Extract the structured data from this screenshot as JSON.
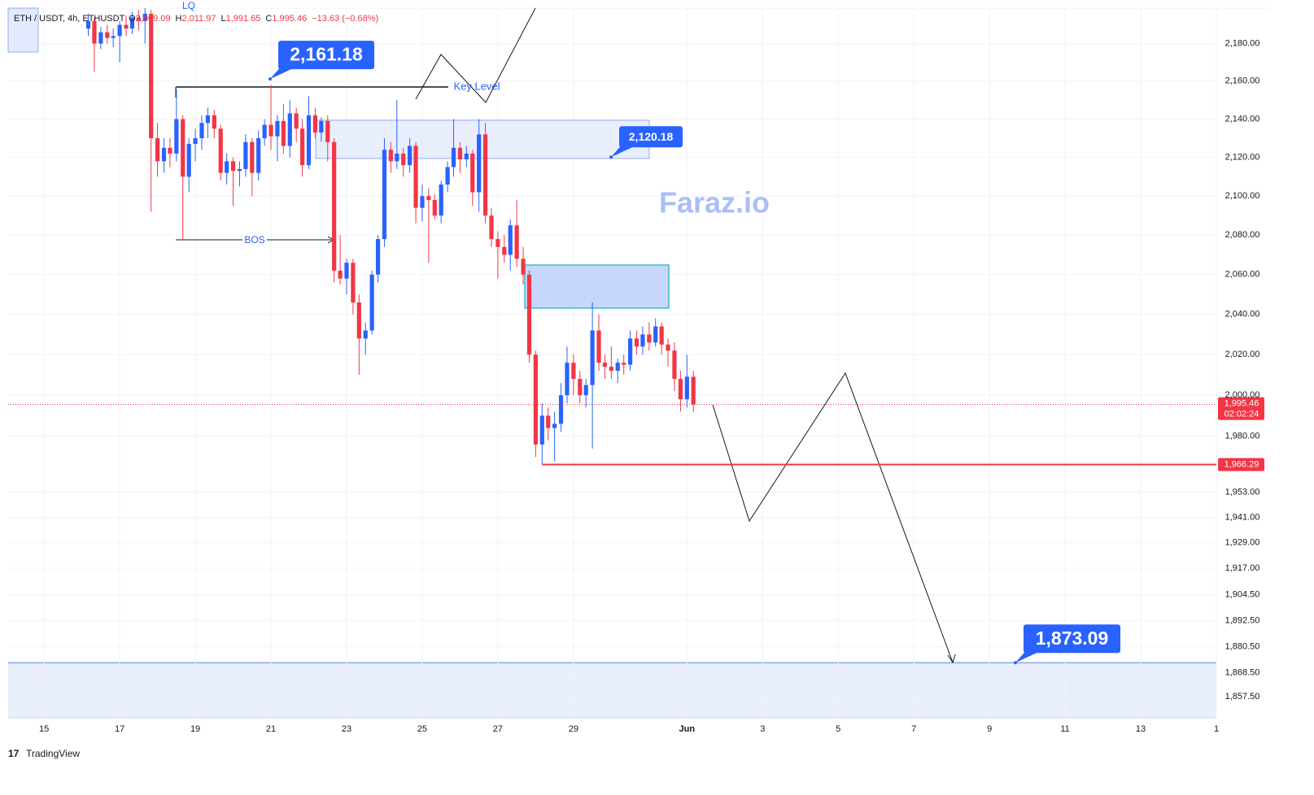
{
  "header": {
    "symbol": "ETH / USDT, 4h, ETHUSDT",
    "ohlc": [
      [
        "O",
        "2,009.09"
      ],
      [
        "H",
        "2,011.97"
      ],
      [
        "L",
        "1,991.65"
      ],
      [
        "C",
        "1,995.46"
      ]
    ],
    "change": "−13.63 (−0.68%)"
  },
  "watermark": "Faraz.io",
  "footer": "TradingView",
  "chart_data": {
    "type": "candlestick",
    "log_scale": true,
    "grid": true,
    "colors": {
      "up": "#2962ff",
      "down": "#f23645"
    },
    "xlim": [
      -0.95,
      31
    ],
    "ylim": [
      1848,
      2199
    ],
    "xticks": [
      {
        "value": 0,
        "label": "15"
      },
      {
        "value": 2,
        "label": "17"
      },
      {
        "value": 4,
        "label": "19"
      },
      {
        "value": 6,
        "label": "21"
      },
      {
        "value": 8,
        "label": "23"
      },
      {
        "value": 10,
        "label": "25"
      },
      {
        "value": 12,
        "label": "27"
      },
      {
        "value": 14,
        "label": "29"
      },
      {
        "value": 17,
        "label": "Jun"
      },
      {
        "value": 19,
        "label": "3"
      },
      {
        "value": 21,
        "label": "5"
      },
      {
        "value": 23,
        "label": "7"
      },
      {
        "value": 25,
        "label": "9"
      },
      {
        "value": 27,
        "label": "11"
      },
      {
        "value": 29,
        "label": "13"
      },
      {
        "value": 31,
        "label": "1"
      }
    ],
    "yticks": [
      {
        "value": 2180,
        "label": "2,180.00"
      },
      {
        "value": 2160,
        "label": "2,160.00"
      },
      {
        "value": 2140,
        "label": "2,140.00"
      },
      {
        "value": 2120,
        "label": "2,120.00"
      },
      {
        "value": 2100,
        "label": "2,100.00"
      },
      {
        "value": 2080,
        "label": "2,080.00"
      },
      {
        "value": 2060,
        "label": "2,060.00"
      },
      {
        "value": 2040,
        "label": "2,040.00"
      },
      {
        "value": 2020,
        "label": "2,020.00"
      },
      {
        "value": 2000,
        "label": "2,000.00"
      },
      {
        "value": 1980,
        "label": "1,980.00"
      },
      {
        "value": 1953,
        "label": "1,953.00"
      },
      {
        "value": 1941,
        "label": "1,941.00"
      },
      {
        "value": 1929,
        "label": "1,929.00"
      },
      {
        "value": 1917,
        "label": "1,917.00"
      },
      {
        "value": 1904.5,
        "label": "1,904.50"
      },
      {
        "value": 1892.5,
        "label": "1,892.50"
      },
      {
        "value": 1880.5,
        "label": "1,880.50"
      },
      {
        "value": 1868.5,
        "label": "1,868.50"
      },
      {
        "value": 1857.5,
        "label": "1,857.50"
      }
    ],
    "last_price": {
      "value": 1995.46,
      "label": "1,995.46"
    },
    "countdown": "02:02:24",
    "levels": [
      {
        "value": 1966.29,
        "label": "1,966.29"
      }
    ],
    "annotations": [
      {
        "value": 2161.18,
        "label": "2,161.18"
      },
      {
        "value": 2120.18,
        "label": "2,120.18"
      },
      {
        "value": 1873.09,
        "label": "1,873.09"
      }
    ],
    "texts": [
      "Key Level",
      "BOS",
      "LQ"
    ],
    "candles": [
      [
        1.17,
        2188,
        2196,
        2184,
        2192
      ],
      [
        1.33,
        2192,
        2194,
        2165,
        2180
      ],
      [
        1.5,
        2180,
        2189,
        2177,
        2186
      ],
      [
        1.67,
        2186,
        2190,
        2180,
        2183
      ],
      [
        1.83,
        2183,
        2188,
        2178,
        2184
      ],
      [
        2.0,
        2184,
        2192,
        2170,
        2190
      ],
      [
        2.17,
        2190,
        2195,
        2184,
        2188
      ],
      [
        2.33,
        2188,
        2197,
        2185,
        2194
      ],
      [
        2.5,
        2194,
        2198,
        2187,
        2192
      ],
      [
        2.67,
        2192,
        2199,
        2180,
        2196
      ],
      [
        2.83,
        2196,
        2198,
        2092,
        2130
      ],
      [
        3.0,
        2130,
        2138,
        2110,
        2118
      ],
      [
        3.17,
        2118,
        2130,
        2112,
        2125
      ],
      [
        3.33,
        2125,
        2130,
        2115,
        2122
      ],
      [
        3.5,
        2122,
        2156,
        2118,
        2140
      ],
      [
        3.67,
        2140,
        2142,
        2078,
        2110
      ],
      [
        3.83,
        2110,
        2130,
        2102,
        2127
      ],
      [
        4.0,
        2127,
        2135,
        2118,
        2130
      ],
      [
        4.17,
        2130,
        2142,
        2124,
        2138
      ],
      [
        4.33,
        2138,
        2146,
        2130,
        2142
      ],
      [
        4.5,
        2142,
        2145,
        2130,
        2135
      ],
      [
        4.67,
        2135,
        2137,
        2108,
        2112
      ],
      [
        4.83,
        2112,
        2122,
        2106,
        2118
      ],
      [
        5.0,
        2118,
        2120,
        2095,
        2113
      ],
      [
        5.17,
        2113,
        2118,
        2105,
        2114
      ],
      [
        5.33,
        2114,
        2132,
        2110,
        2128
      ],
      [
        5.5,
        2128,
        2130,
        2100,
        2112
      ],
      [
        5.67,
        2112,
        2134,
        2108,
        2130
      ],
      [
        5.83,
        2130,
        2140,
        2126,
        2137
      ],
      [
        6.0,
        2137,
        2158,
        2124,
        2131
      ],
      [
        6.17,
        2131,
        2142,
        2118,
        2139
      ],
      [
        6.33,
        2139,
        2148,
        2122,
        2126
      ],
      [
        6.5,
        2126,
        2150,
        2120,
        2143
      ],
      [
        6.67,
        2143,
        2146,
        2128,
        2135
      ],
      [
        6.83,
        2135,
        2140,
        2110,
        2116
      ],
      [
        7.0,
        2116,
        2152,
        2114,
        2142
      ],
      [
        7.17,
        2142,
        2146,
        2130,
        2133
      ],
      [
        7.33,
        2133,
        2141,
        2128,
        2139
      ],
      [
        7.5,
        2139,
        2142,
        2118,
        2128
      ],
      [
        7.67,
        2128,
        2130,
        2056,
        2062
      ],
      [
        7.83,
        2062,
        2080,
        2055,
        2058
      ],
      [
        8.0,
        2058,
        2068,
        2050,
        2066
      ],
      [
        8.17,
        2066,
        2068,
        2040,
        2046
      ],
      [
        8.33,
        2046,
        2050,
        2010,
        2028
      ],
      [
        8.5,
        2028,
        2036,
        2020,
        2032
      ],
      [
        8.67,
        2032,
        2062,
        2030,
        2060
      ],
      [
        8.83,
        2060,
        2080,
        2056,
        2078
      ],
      [
        9.0,
        2078,
        2130,
        2074,
        2124
      ],
      [
        9.17,
        2124,
        2128,
        2112,
        2118
      ],
      [
        9.33,
        2118,
        2150,
        2114,
        2122
      ],
      [
        9.5,
        2122,
        2125,
        2110,
        2116
      ],
      [
        9.67,
        2116,
        2130,
        2112,
        2126
      ],
      [
        9.83,
        2126,
        2128,
        2086,
        2094
      ],
      [
        10.0,
        2094,
        2106,
        2087,
        2100
      ],
      [
        10.17,
        2100,
        2104,
        2066,
        2098
      ],
      [
        10.33,
        2098,
        2101,
        2088,
        2090
      ],
      [
        10.5,
        2090,
        2108,
        2086,
        2106
      ],
      [
        10.67,
        2106,
        2118,
        2102,
        2115
      ],
      [
        10.83,
        2115,
        2140,
        2110,
        2125
      ],
      [
        11.0,
        2125,
        2128,
        2112,
        2119
      ],
      [
        11.17,
        2119,
        2126,
        2115,
        2122
      ],
      [
        11.33,
        2122,
        2124,
        2095,
        2102
      ],
      [
        11.5,
        2102,
        2140,
        2092,
        2132
      ],
      [
        11.67,
        2132,
        2138,
        2086,
        2090
      ],
      [
        11.83,
        2090,
        2094,
        2074,
        2078
      ],
      [
        12.0,
        2078,
        2082,
        2058,
        2074
      ],
      [
        12.17,
        2074,
        2080,
        2066,
        2070
      ],
      [
        12.33,
        2070,
        2088,
        2062,
        2085
      ],
      [
        12.5,
        2085,
        2098,
        2064,
        2068
      ],
      [
        12.67,
        2068,
        2074,
        2055,
        2060
      ],
      [
        12.83,
        2060,
        2062,
        2016,
        2020
      ],
      [
        13.0,
        2020,
        2022,
        1970,
        1976
      ],
      [
        13.17,
        1976,
        1996,
        1966.29,
        1990
      ],
      [
        13.33,
        1990,
        1994,
        1978,
        1984
      ],
      [
        13.5,
        1984,
        1992,
        1968,
        1986
      ],
      [
        13.67,
        1986,
        2006,
        1982,
        2000
      ],
      [
        13.83,
        2000,
        2024,
        1996,
        2016
      ],
      [
        14.0,
        2016,
        2020,
        2000,
        2008
      ],
      [
        14.17,
        2008,
        2012,
        1996,
        2000
      ],
      [
        14.33,
        2000,
        2008,
        1994,
        2005
      ],
      [
        14.5,
        2005,
        2046,
        1974,
        2032
      ],
      [
        14.67,
        2032,
        2040,
        2012,
        2016
      ],
      [
        14.83,
        2016,
        2020,
        2008,
        2014
      ],
      [
        15.0,
        2014,
        2024,
        2008,
        2012
      ],
      [
        15.17,
        2012,
        2018,
        2006,
        2016
      ],
      [
        15.33,
        2016,
        2020,
        2010,
        2015
      ],
      [
        15.5,
        2015,
        2032,
        2012,
        2028
      ],
      [
        15.67,
        2028,
        2032,
        2020,
        2024
      ],
      [
        15.83,
        2024,
        2034,
        2020,
        2030
      ],
      [
        16.0,
        2030,
        2036,
        2022,
        2026
      ],
      [
        16.17,
        2026,
        2038,
        2024,
        2034
      ],
      [
        16.33,
        2034,
        2036,
        2020,
        2025
      ],
      [
        16.5,
        2025,
        2028,
        2014,
        2022
      ],
      [
        16.67,
        2022,
        2026,
        2002,
        2008
      ],
      [
        16.83,
        2008,
        2012,
        1992,
        1998
      ],
      [
        17.0,
        1998,
        2020,
        1994,
        2009.09
      ],
      [
        17.17,
        2009.09,
        2011.97,
        1991.65,
        1995.46
      ]
    ]
  }
}
